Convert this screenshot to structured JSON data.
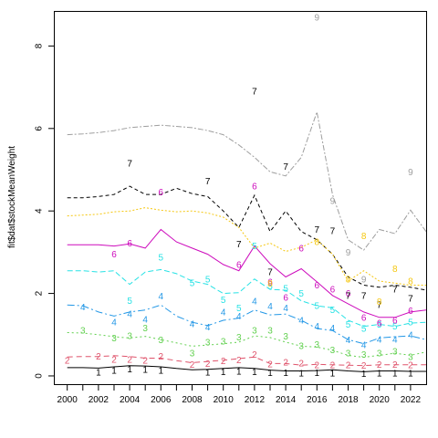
{
  "chart_data": {
    "type": "line",
    "title": "",
    "xlabel": "",
    "ylabel": "fit$dat$stockMeanWeight",
    "xlim": [
      1999.2,
      2023.0
    ],
    "ylim": [
      -0.2,
      8.85
    ],
    "x_ticks": [
      "2000",
      "2002",
      "2004",
      "2006",
      "2008",
      "2010",
      "2012",
      "2014",
      "2016",
      "2018",
      "2020",
      "2022"
    ],
    "y_ticks": [
      "0",
      "2",
      "4",
      "6",
      "8"
    ],
    "x_minor_ticks": [
      2001,
      2003,
      2005,
      2007,
      2009,
      2011,
      2013,
      2015,
      2017,
      2019,
      2021
    ],
    "grid": false,
    "legend": "none",
    "series": [
      {
        "label": "1",
        "color": "#000000",
        "dash": "",
        "x": [
          2000,
          2001,
          2002,
          2003,
          2004,
          2005,
          2006,
          2007,
          2008,
          2009,
          2010,
          2011,
          2012,
          2013,
          2014,
          2015,
          2016,
          2017,
          2018,
          2019,
          2020,
          2021,
          2022,
          2023
        ],
        "y": [
          0.2,
          0.2,
          0.19,
          0.22,
          0.25,
          0.24,
          0.22,
          0.18,
          0.15,
          0.16,
          0.18,
          0.2,
          0.18,
          0.14,
          0.12,
          0.12,
          0.13,
          0.15,
          0.12,
          0.1,
          0.12,
          0.12,
          0.11,
          0.11
        ],
        "label_points": [
          [
            2002,
            0.09
          ],
          [
            2003,
            0.13
          ],
          [
            2004,
            0.16
          ],
          [
            2005,
            0.15
          ],
          [
            2006,
            0.13
          ],
          [
            2009,
            0.09
          ],
          [
            2010,
            0.1
          ],
          [
            2011,
            0.11
          ],
          [
            2012,
            0.1
          ],
          [
            2013,
            0.08
          ],
          [
            2014,
            0.08
          ],
          [
            2015,
            0.07
          ],
          [
            2016,
            0.08
          ],
          [
            2017,
            0.07
          ],
          [
            2019,
            0.05
          ],
          [
            2020,
            0.07
          ],
          [
            2021,
            0.06
          ],
          [
            2022,
            0.06
          ]
        ]
      },
      {
        "label": "2",
        "color": "#df536b",
        "dash": "6,4",
        "x": [
          2000,
          2001,
          2002,
          2003,
          2004,
          2005,
          2006,
          2007,
          2008,
          2009,
          2010,
          2011,
          2012,
          2013,
          2014,
          2015,
          2016,
          2017,
          2018,
          2019,
          2020,
          2021,
          2022,
          2023
        ],
        "y": [
          0.46,
          0.47,
          0.47,
          0.49,
          0.47,
          0.43,
          0.43,
          0.37,
          0.32,
          0.35,
          0.38,
          0.42,
          0.46,
          0.3,
          0.3,
          0.26,
          0.28,
          0.27,
          0.26,
          0.25,
          0.27,
          0.27,
          0.27,
          0.27
        ],
        "label_points": [
          [
            2000,
            0.38
          ],
          [
            2002,
            0.47
          ],
          [
            2003,
            0.4
          ],
          [
            2004,
            0.4
          ],
          [
            2005,
            0.37
          ],
          [
            2006,
            0.47
          ],
          [
            2008,
            0.28
          ],
          [
            2009,
            0.3
          ],
          [
            2010,
            0.36
          ],
          [
            2011,
            0.39
          ],
          [
            2012,
            0.52
          ],
          [
            2013,
            0.29
          ],
          [
            2014,
            0.33
          ],
          [
            2015,
            0.31
          ],
          [
            2016,
            0.27
          ],
          [
            2017,
            0.26
          ],
          [
            2018,
            0.27
          ],
          [
            2019,
            0.25
          ],
          [
            2020,
            0.28
          ],
          [
            2021,
            0.28
          ],
          [
            2022,
            0.26
          ]
        ]
      },
      {
        "label": "3",
        "color": "#61d04f",
        "dash": "2,3",
        "x": [
          2000,
          2001,
          2002,
          2003,
          2004,
          2005,
          2006,
          2007,
          2008,
          2009,
          2010,
          2011,
          2012,
          2013,
          2014,
          2015,
          2016,
          2017,
          2018,
          2019,
          2020,
          2021,
          2022,
          2023
        ],
        "y": [
          1.05,
          1.04,
          1.0,
          0.95,
          0.92,
          0.96,
          0.88,
          0.8,
          0.72,
          0.75,
          0.78,
          0.82,
          0.97,
          0.93,
          0.82,
          0.72,
          0.7,
          0.62,
          0.5,
          0.45,
          0.5,
          0.55,
          0.5,
          0.58
        ],
        "label_points": [
          [
            2001,
            1.1
          ],
          [
            2003,
            0.92
          ],
          [
            2004,
            0.97
          ],
          [
            2005,
            1.16
          ],
          [
            2006,
            0.87
          ],
          [
            2008,
            0.55
          ],
          [
            2009,
            0.82
          ],
          [
            2010,
            0.84
          ],
          [
            2011,
            0.94
          ],
          [
            2012,
            1.1
          ],
          [
            2013,
            1.1
          ],
          [
            2014,
            0.96
          ],
          [
            2015,
            0.73
          ],
          [
            2016,
            0.76
          ],
          [
            2017,
            0.63
          ],
          [
            2018,
            0.55
          ],
          [
            2019,
            0.52
          ],
          [
            2020,
            0.55
          ],
          [
            2021,
            0.6
          ],
          [
            2022,
            0.46
          ]
        ]
      },
      {
        "label": "4",
        "color": "#2297e6",
        "dash": "8,3,2,3",
        "x": [
          2000,
          2001,
          2002,
          2003,
          2004,
          2005,
          2006,
          2007,
          2008,
          2009,
          2010,
          2011,
          2012,
          2013,
          2014,
          2015,
          2016,
          2017,
          2018,
          2019,
          2020,
          2021,
          2022,
          2023
        ],
        "y": [
          1.72,
          1.7,
          1.55,
          1.45,
          1.55,
          1.6,
          1.72,
          1.45,
          1.3,
          1.22,
          1.35,
          1.4,
          1.6,
          1.48,
          1.5,
          1.35,
          1.15,
          1.1,
          0.88,
          0.78,
          0.92,
          0.95,
          0.97,
          0.88
        ],
        "label_points": [
          [
            2001,
            1.67
          ],
          [
            2003,
            1.3
          ],
          [
            2004,
            1.5
          ],
          [
            2005,
            1.37
          ],
          [
            2006,
            1.94
          ],
          [
            2008,
            1.26
          ],
          [
            2009,
            1.18
          ],
          [
            2010,
            1.55
          ],
          [
            2011,
            1.45
          ],
          [
            2012,
            1.81
          ],
          [
            2013,
            1.69
          ],
          [
            2014,
            1.65
          ],
          [
            2015,
            1.35
          ],
          [
            2016,
            1.2
          ],
          [
            2017,
            1.16
          ],
          [
            2018,
            0.87
          ],
          [
            2019,
            0.75
          ],
          [
            2020,
            0.88
          ],
          [
            2021,
            0.88
          ],
          [
            2022,
            1.0
          ]
        ]
      },
      {
        "label": "5",
        "color": "#28e2e5",
        "dash": "6,3",
        "x": [
          2000,
          2001,
          2002,
          2003,
          2004,
          2005,
          2006,
          2007,
          2008,
          2009,
          2010,
          2011,
          2012,
          2013,
          2014,
          2015,
          2016,
          2017,
          2018,
          2019,
          2020,
          2021,
          2022,
          2023
        ],
        "y": [
          2.55,
          2.55,
          2.52,
          2.55,
          2.22,
          2.52,
          2.58,
          2.48,
          2.3,
          2.22,
          2.0,
          2.02,
          2.35,
          2.1,
          2.08,
          1.82,
          1.7,
          1.65,
          1.35,
          1.2,
          1.25,
          1.2,
          1.28,
          1.3
        ],
        "label_points": [
          [
            2004,
            1.83
          ],
          [
            2006,
            2.88
          ],
          [
            2008,
            2.26
          ],
          [
            2009,
            2.35
          ],
          [
            2010,
            1.85
          ],
          [
            2011,
            1.65
          ],
          [
            2012,
            3.15
          ],
          [
            2013,
            2.18
          ],
          [
            2014,
            2.12
          ],
          [
            2015,
            2.0
          ],
          [
            2016,
            1.7
          ],
          [
            2017,
            1.6
          ],
          [
            2018,
            1.25
          ],
          [
            2019,
            1.15
          ],
          [
            2020,
            1.25
          ],
          [
            2021,
            1.2
          ],
          [
            2022,
            1.3
          ]
        ]
      },
      {
        "label": "6",
        "color": "#cd0bbc",
        "dash": "",
        "x": [
          2000,
          2001,
          2002,
          2003,
          2004,
          2005,
          2006,
          2007,
          2008,
          2009,
          2010,
          2011,
          2012,
          2013,
          2014,
          2015,
          2016,
          2017,
          2018,
          2019,
          2020,
          2021,
          2022,
          2023
        ],
        "y": [
          3.18,
          3.18,
          3.18,
          3.15,
          3.2,
          3.1,
          3.55,
          3.25,
          3.1,
          2.95,
          2.7,
          2.55,
          3.15,
          2.72,
          2.4,
          2.6,
          2.28,
          1.95,
          1.75,
          1.55,
          1.42,
          1.42,
          1.55,
          1.6
        ],
        "label_points": [
          [
            2003,
            2.95
          ],
          [
            2004,
            3.22
          ],
          [
            2006,
            4.46
          ],
          [
            2011,
            2.7
          ],
          [
            2012,
            4.6
          ],
          [
            2013,
            2.28
          ],
          [
            2014,
            1.9
          ],
          [
            2015,
            3.1
          ],
          [
            2016,
            2.2
          ],
          [
            2017,
            2.1
          ],
          [
            2018,
            2.0
          ],
          [
            2019,
            1.42
          ],
          [
            2020,
            1.28
          ],
          [
            2021,
            1.35
          ],
          [
            2022,
            1.58
          ]
        ]
      },
      {
        "label": "7",
        "color": "#000000",
        "dash": "4,3",
        "x": [
          2000,
          2001,
          2002,
          2003,
          2004,
          2005,
          2006,
          2007,
          2008,
          2009,
          2010,
          2011,
          2012,
          2013,
          2014,
          2015,
          2016,
          2017,
          2018,
          2019,
          2020,
          2021,
          2022,
          2023
        ],
        "y": [
          4.32,
          4.32,
          4.35,
          4.4,
          4.6,
          4.4,
          4.4,
          4.55,
          4.42,
          4.35,
          4.0,
          3.6,
          4.38,
          3.5,
          4.0,
          3.5,
          3.3,
          2.95,
          2.4,
          2.2,
          2.15,
          2.2,
          2.15,
          2.08
        ],
        "label_points": [
          [
            2004,
            5.16
          ],
          [
            2009,
            4.72
          ],
          [
            2011,
            3.2
          ],
          [
            2012,
            6.9
          ],
          [
            2013,
            2.52
          ],
          [
            2014,
            5.08
          ],
          [
            2016,
            3.55
          ],
          [
            2017,
            3.52
          ],
          [
            2018,
            1.95
          ],
          [
            2019,
            1.95
          ],
          [
            2020,
            1.72
          ],
          [
            2021,
            2.1
          ],
          [
            2022,
            1.88
          ]
        ]
      },
      {
        "label": "8",
        "color": "#f5c710",
        "dash": "2,2",
        "x": [
          2000,
          2001,
          2002,
          2003,
          2004,
          2005,
          2006,
          2007,
          2008,
          2009,
          2010,
          2011,
          2012,
          2013,
          2014,
          2015,
          2016,
          2017,
          2018,
          2019,
          2020,
          2021,
          2022,
          2023
        ],
        "y": [
          3.88,
          3.9,
          3.92,
          3.98,
          4.0,
          4.08,
          4.02,
          3.98,
          4.0,
          3.95,
          3.85,
          3.6,
          3.1,
          3.22,
          3.02,
          3.12,
          3.3,
          2.95,
          2.3,
          2.55,
          2.3,
          2.25,
          2.2,
          2.2
        ],
        "label_points": [
          [
            2013,
            2.25
          ],
          [
            2016,
            3.25
          ],
          [
            2018,
            2.35
          ],
          [
            2019,
            3.4
          ],
          [
            2020,
            1.8
          ],
          [
            2021,
            2.6
          ],
          [
            2022,
            2.3
          ]
        ]
      },
      {
        "label": "9",
        "color": "#9e9e9e",
        "dash": "6,2,2,2",
        "x": [
          2000,
          2001,
          2002,
          2003,
          2004,
          2005,
          2006,
          2007,
          2008,
          2009,
          2010,
          2011,
          2012,
          2013,
          2014,
          2015,
          2016,
          2017,
          2018,
          2019,
          2020,
          2021,
          2022,
          2023
        ],
        "y": [
          5.85,
          5.87,
          5.9,
          5.95,
          6.02,
          6.05,
          6.08,
          6.05,
          6.02,
          5.95,
          5.85,
          5.6,
          5.3,
          4.95,
          4.85,
          5.3,
          6.4,
          4.4,
          3.3,
          3.05,
          3.55,
          3.45,
          4.02,
          3.5
        ],
        "label_points": [
          [
            2016,
            8.7
          ],
          [
            2017,
            4.25
          ],
          [
            2018,
            3.0
          ],
          [
            2019,
            2.35
          ],
          [
            2022,
            4.95
          ]
        ]
      }
    ]
  }
}
